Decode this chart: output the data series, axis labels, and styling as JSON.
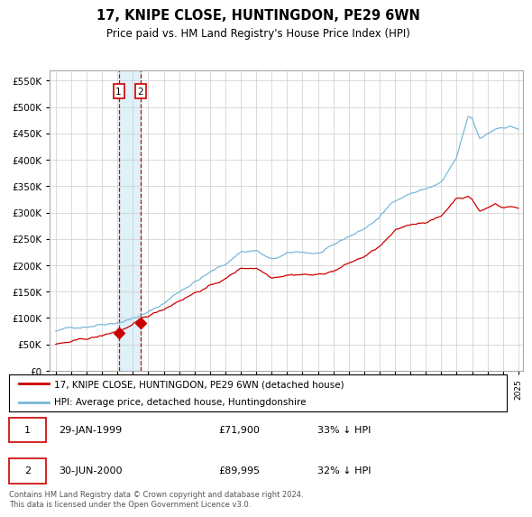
{
  "title": "17, KNIPE CLOSE, HUNTINGDON, PE29 6WN",
  "subtitle": "Price paid vs. HM Land Registry's House Price Index (HPI)",
  "legend_line1": "17, KNIPE CLOSE, HUNTINGDON, PE29 6WN (detached house)",
  "legend_line2": "HPI: Average price, detached house, Huntingdonshire",
  "footer": "Contains HM Land Registry data © Crown copyright and database right 2024.\nThis data is licensed under the Open Government Licence v3.0.",
  "table": [
    {
      "num": "1",
      "date": "29-JAN-1999",
      "price": "£71,900",
      "hpi": "33% ↓ HPI"
    },
    {
      "num": "2",
      "date": "30-JUN-2000",
      "price": "£89,995",
      "hpi": "32% ↓ HPI"
    }
  ],
  "sale1_date": 1999.08,
  "sale1_price": 71900,
  "sale2_date": 2000.5,
  "sale2_price": 89995,
  "hpi_color": "#7ab8d9",
  "price_color": "#cc0000",
  "vline_color": "#cc0000",
  "shade_color": "#d8eef8",
  "ylim_max": 570000,
  "ylim_min": 0,
  "background_color": "#ffffff"
}
